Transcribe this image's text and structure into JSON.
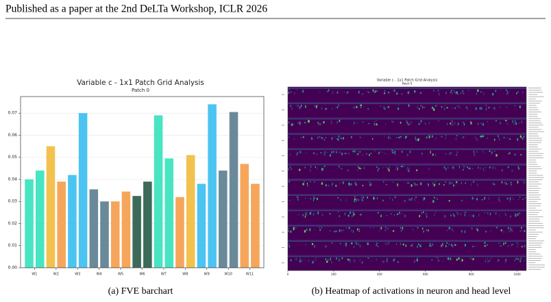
{
  "header": {
    "text": "Published as a paper at the 2nd DeLTa Workshop, ICLR 2026"
  },
  "figure_a": {
    "caption": "(a) FVE barchart",
    "chart_data": {
      "type": "bar",
      "title": "Variable c - 1x1 Patch Grid Analysis",
      "subtitle": "Patch 0",
      "values": [
        0.04,
        0.044,
        0.055,
        0.039,
        0.042,
        0.07,
        0.0355,
        0.03,
        0.03,
        0.0345,
        0.0325,
        0.039,
        0.069,
        0.0495,
        0.032,
        0.051,
        0.038,
        0.074,
        0.044,
        0.0705,
        0.047,
        0.038
      ],
      "colors": [
        "#48e5c2",
        "#48e5c2",
        "#f2c14e",
        "#f5a65b",
        "#4cc4f2",
        "#4cc4f2",
        "#6a8a9a",
        "#6a8a9a",
        "#f5a65b",
        "#f5a65b",
        "#3d6b5b",
        "#3d6b5b",
        "#48e5c2",
        "#48e5c2",
        "#f5a65b",
        "#f2c14e",
        "#4cc4f2",
        "#4cc4f2",
        "#6a8a9a",
        "#6a8a9a",
        "#f5a65b",
        "#f5a65b"
      ],
      "xlim": [
        -0.8,
        21.8
      ],
      "xticks": [
        {
          "value": 0.5,
          "label": "W1"
        },
        {
          "value": 2.5,
          "label": "W2"
        },
        {
          "value": 4.5,
          "label": "W3"
        },
        {
          "value": 6.5,
          "label": "W4"
        },
        {
          "value": 8.5,
          "label": "W5"
        },
        {
          "value": 10.5,
          "label": "W6"
        },
        {
          "value": 12.5,
          "label": "W7"
        },
        {
          "value": 14.5,
          "label": "W8"
        },
        {
          "value": 16.5,
          "label": "W9"
        },
        {
          "value": 18.5,
          "label": "W10"
        },
        {
          "value": 20.5,
          "label": "W11"
        }
      ],
      "ylim": [
        0,
        0.0775
      ],
      "yticks": [
        {
          "value": 0,
          "label": "0.00"
        },
        {
          "value": 0.01,
          "label": "0.01"
        },
        {
          "value": 0.02,
          "label": "0.02"
        },
        {
          "value": 0.03,
          "label": "0.03"
        },
        {
          "value": 0.04,
          "label": "0.04"
        },
        {
          "value": 0.05,
          "label": "0.05"
        },
        {
          "value": 0.06,
          "label": "0.06"
        },
        {
          "value": 0.07,
          "label": "0.07"
        }
      ],
      "grid": true
    }
  },
  "figure_b": {
    "caption": "(b) Heatmap of activations in neuron and head level",
    "title": "Variable c - 1x1 Patch Grid Analysis",
    "subtitle": "Patch 0",
    "xlim": [
      0,
      1040
    ],
    "xticks": [
      0,
      200,
      400,
      600,
      800,
      1000
    ]
  }
}
